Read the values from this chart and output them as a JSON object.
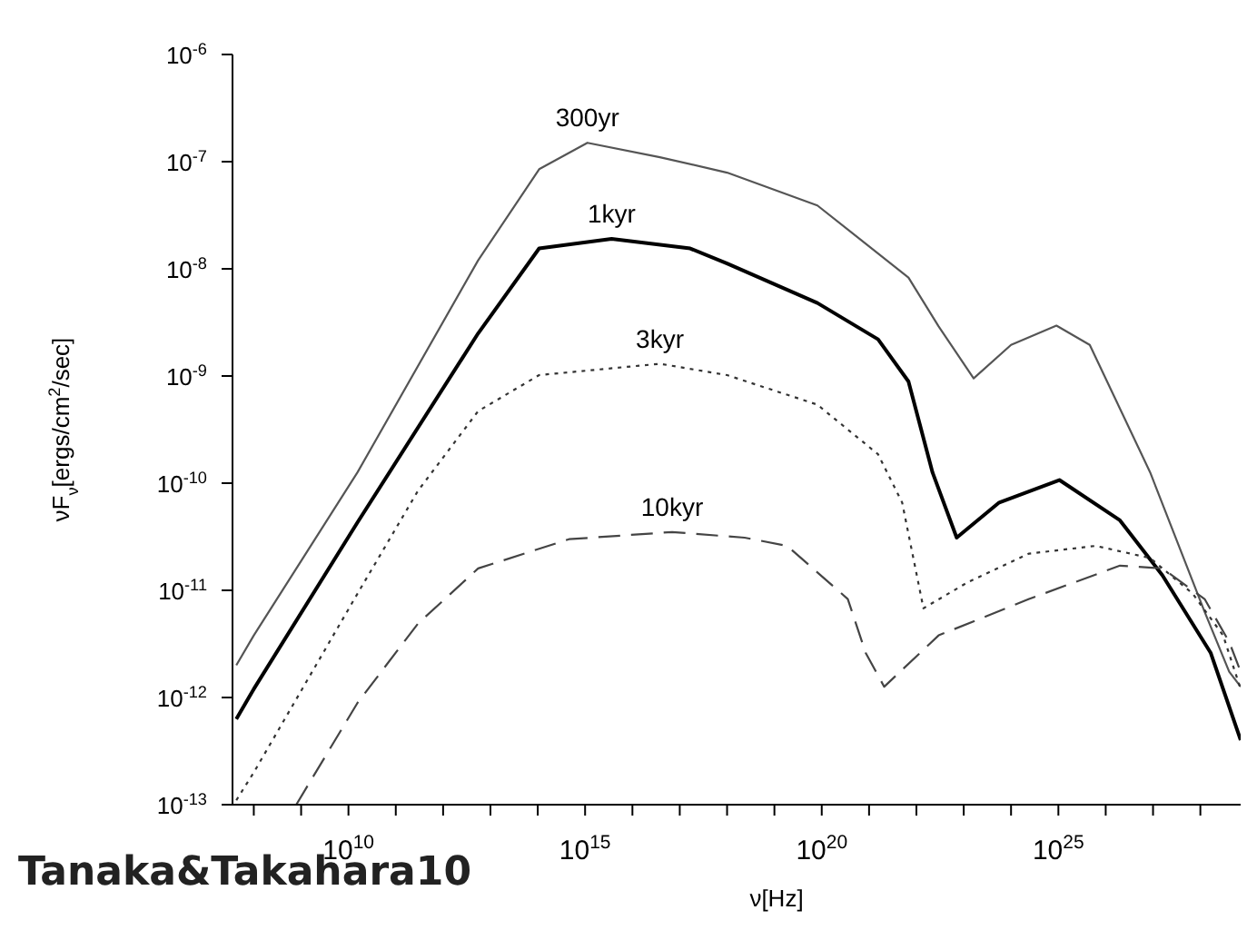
{
  "chart_data": {
    "type": "line",
    "xlabel": "ν[Hz]",
    "ylabel": "νF$_{ν}$[ergs/cm$^{2}$/sec]",
    "log": "xy",
    "xlim": [
      35500000.0,
      7.1e+28
    ],
    "ylim": [
      1e-13,
      1e-06
    ],
    "xticks": [
      {
        "value": 100000000.0,
        "label": null
      },
      {
        "value": 1000000000.0,
        "label": null
      },
      {
        "value": 10000000000.0,
        "label": "10$^{10}$"
      },
      {
        "value": 100000000000.0,
        "label": null
      },
      {
        "value": 1000000000000.0,
        "label": null
      },
      {
        "value": 10000000000000.0,
        "label": null
      },
      {
        "value": 100000000000000.0,
        "label": null
      },
      {
        "value": 1000000000000000.0,
        "label": "10$^{15}$"
      },
      {
        "value": 1e+16,
        "label": null
      },
      {
        "value": 1e+17,
        "label": null
      },
      {
        "value": 1e+18,
        "label": null
      },
      {
        "value": 1e+19,
        "label": null
      },
      {
        "value": 1e+20,
        "label": "10$^{20}$"
      },
      {
        "value": 1e+21,
        "label": null
      },
      {
        "value": 1e+22,
        "label": null
      },
      {
        "value": 1e+23,
        "label": null
      },
      {
        "value": 1e+24,
        "label": null
      },
      {
        "value": 1e+25,
        "label": "10$^{25}$"
      },
      {
        "value": 1e+26,
        "label": null
      },
      {
        "value": 1e+27,
        "label": null
      },
      {
        "value": 1e+28,
        "label": null
      }
    ],
    "yticks": [
      {
        "value": 1e-13,
        "label": "10$^{-13}$"
      },
      {
        "value": 1e-12,
        "label": "10$^{-12}$"
      },
      {
        "value": 1e-11,
        "label": "10$^{-11}$"
      },
      {
        "value": 1e-10,
        "label": "10$^{-10}$"
      },
      {
        "value": 1e-09,
        "label": "10$^{-9}$"
      },
      {
        "value": 1e-08,
        "label": "10$^{-8}$"
      },
      {
        "value": 1e-07,
        "label": "10$^{-7}$"
      },
      {
        "value": 1e-06,
        "label": "10$^{-6}$"
      }
    ],
    "annotations": [
      "Tanaka&Takahara10"
    ],
    "series": [
      {
        "name": "300yr",
        "color": "#555555",
        "line_style": "solid",
        "x": [
          42700000.0,
          100000000.0,
          15500000000.0,
          5500000000000.0,
          107000000000000.0,
          1120000000000000.0,
          3.8e+16,
          1e+18,
          8.1e+19,
          6.8e+21,
          2.95e+22,
          1.62e+23,
          1e+24,
          9.1e+24,
          4.6e+25,
          8.7e+26,
          1.23e+28,
          4.07e+28,
          7.1e+28
        ],
        "values": [
          2e-12,
          3.8e-12,
          1.26e-10,
          1.2e-08,
          8.5e-08,
          1.5e-07,
          1.1e-07,
          7.9e-08,
          3.9e-08,
          8.3e-09,
          2.9e-09,
          9.5e-10,
          1.95e-09,
          2.95e-09,
          1.95e-09,
          1.26e-10,
          6.3e-12,
          1.74e-12,
          1.26e-12
        ]
      },
      {
        "name": "1kyr",
        "color": "#000000",
        "line_style": "solid",
        "x": [
          42700000.0,
          100000000.0,
          15500000000.0,
          5500000000000.0,
          107000000000000.0,
          3630000000000000.0,
          1.66e+17,
          1e+18,
          8.1e+19,
          1.55e+21,
          6.8e+21,
          2.19e+22,
          7.1e+22,
          5.62e+23,
          1.05e+25,
          2e+26,
          1.58e+27,
          1.66e+28,
          7.1e+28
        ],
        "values": [
          6.3e-13,
          1.2e-12,
          4.3e-11,
          2.5e-09,
          1.55e-08,
          1.9e-08,
          1.55e-08,
          1.12e-08,
          4.8e-09,
          2.2e-09,
          8.9e-10,
          1.26e-10,
          3.1e-11,
          6.6e-11,
          1.07e-10,
          4.5e-11,
          1.38e-11,
          2.6e-12,
          4e-13
        ]
      },
      {
        "name": "3kyr",
        "color": "#333333",
        "line_style": "dotted",
        "x": [
          42700000.0,
          100000000.0,
          15500000000.0,
          295000000000.0,
          5500000000000.0,
          107000000000000.0,
          3.8e+16,
          1e+18,
          8.1e+19,
          1.55e+21,
          5e+21,
          1.41e+22,
          1.26e+23,
          2.4e+24,
          6.2e+25,
          8.7e+26,
          6.9e+27,
          3.02e+28,
          7.1e+28
        ],
        "values": [
          1.1e-13,
          2e-13,
          9.3e-12,
          8.5e-11,
          4.7e-10,
          1.02e-09,
          1.3e-09,
          1.02e-09,
          5.4e-10,
          1.86e-10,
          6.6e-11,
          6.8e-12,
          1.2e-11,
          2.2e-11,
          2.6e-11,
          2e-11,
          9.3e-12,
          3.8e-12,
          1.2e-12
        ]
      },
      {
        "name": "10kyr",
        "color": "#444444",
        "line_style": "dashed",
        "x": [
          790000000.0,
          15500000000.0,
          295000000000.0,
          5500000000000.0,
          457000000000000.0,
          6.9e+16,
          2.34e+18,
          1.86e+19,
          3.55e+20,
          8.5e+20,
          2.09e+21,
          2.95e+22,
          2.4e+24,
          2e+26,
          1.58e+27,
          1.23e+28,
          4.07e+28,
          7.1e+28
        ],
        "values": [
          1e-13,
          8.9e-13,
          4.9e-12,
          1.6e-11,
          3e-11,
          3.5e-11,
          3.1e-11,
          2.6e-11,
          8.3e-12,
          2.6e-12,
          1.26e-12,
          3.8e-12,
          8.3e-12,
          1.7e-11,
          1.6e-11,
          8.3e-12,
          3.3e-12,
          1.74e-12
        ]
      }
    ]
  }
}
